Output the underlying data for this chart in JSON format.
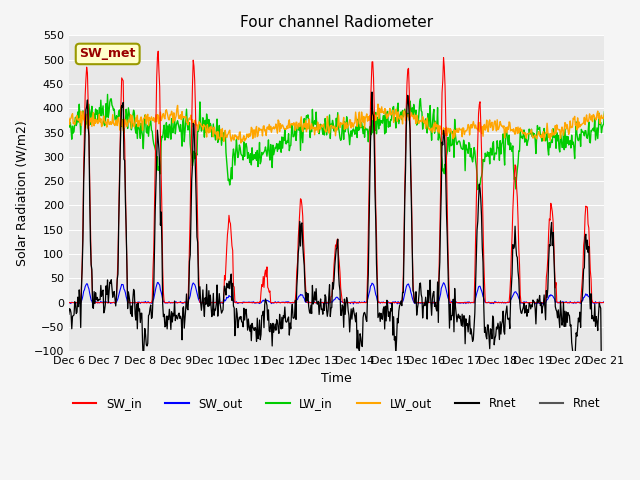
{
  "title": "Four channel Radiometer",
  "xlabel": "Time",
  "ylabel": "Solar Radiation (W/m2)",
  "ylim": [
    -100,
    550
  ],
  "xlim": [
    0,
    15
  ],
  "annotation_text": "SW_met",
  "annotation_bg": "#ffffcc",
  "annotation_border": "#999900",
  "annotation_text_color": "#990000",
  "tick_labels": [
    "Dec 6",
    "Dec 7",
    "Dec 8",
    "Dec 9",
    "Dec 10",
    "Dec 11",
    "Dec 12",
    "Dec 13",
    "Dec 14",
    "Dec 15",
    "Dec 16",
    "Dec 17",
    "Dec 18",
    "Dec 19",
    "Dec 20",
    "Dec 21"
  ],
  "legend_entries": [
    "SW_in",
    "SW_out",
    "LW_in",
    "LW_out",
    "Rnet",
    "Rnet"
  ],
  "legend_colors": [
    "#ff0000",
    "#0000ff",
    "#00cc00",
    "#ffa500",
    "#000000",
    "#555555"
  ],
  "SW_in_color": "#ff0000",
  "SW_out_color": "#0000ff",
  "LW_in_color": "#00cc00",
  "LW_out_color": "#ffa500",
  "Rnet_color": "#000000",
  "seed": 42
}
